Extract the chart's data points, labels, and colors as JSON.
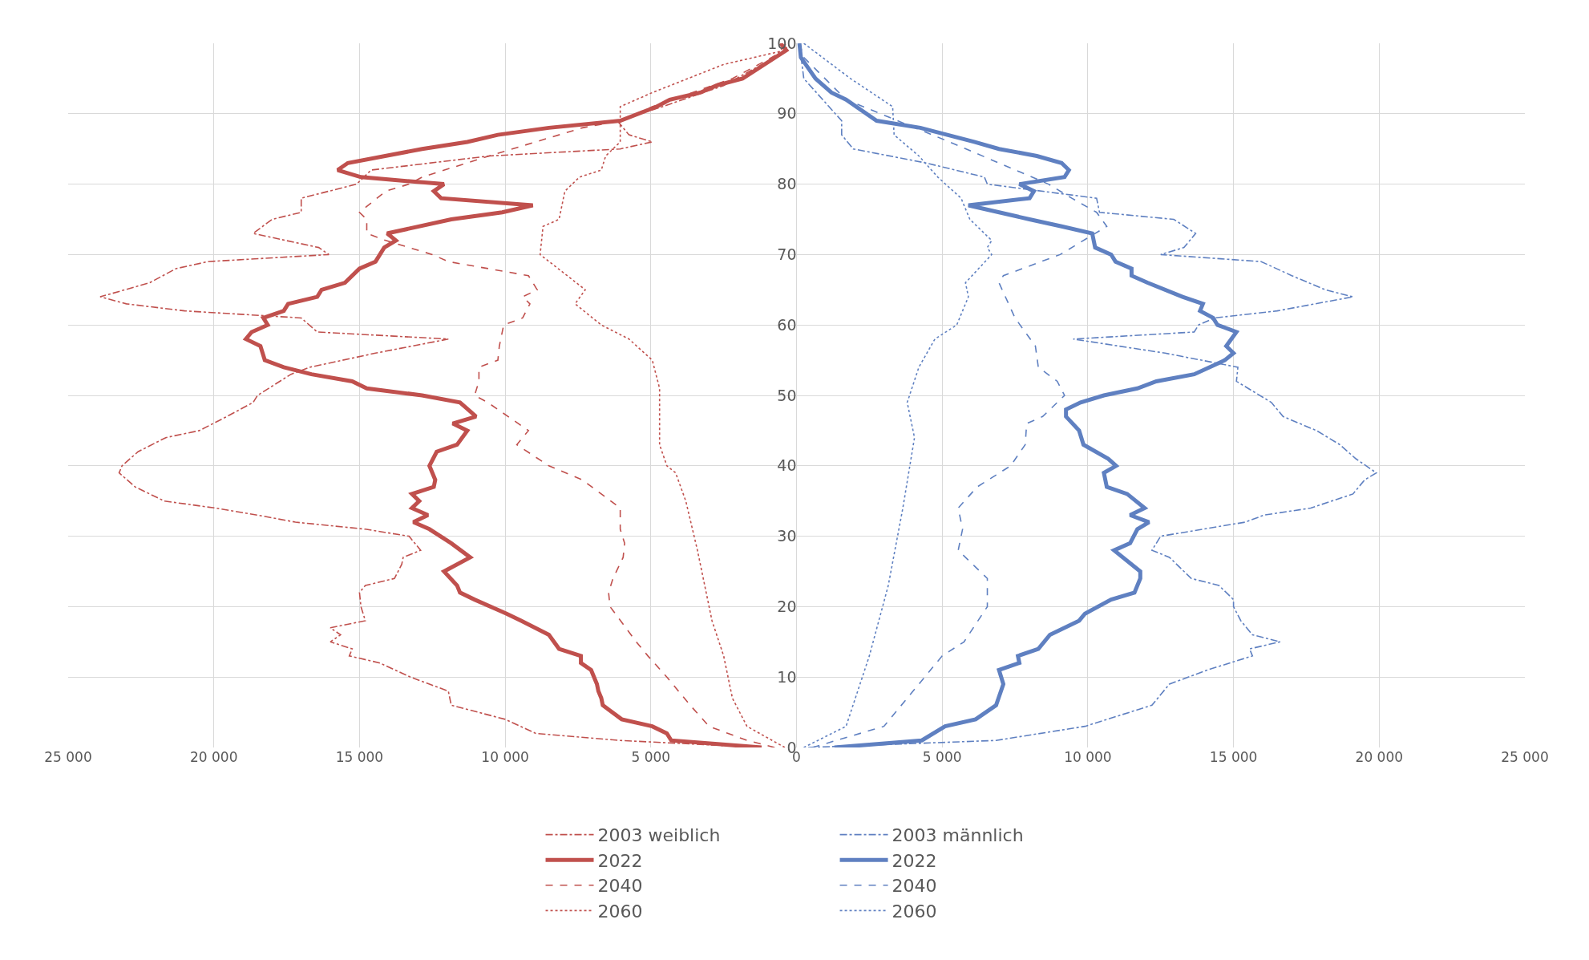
{
  "chart_data": {
    "type": "line",
    "orientation": "horizontal",
    "grid": true,
    "legend": "bottom",
    "xlim": [
      -25000,
      25000
    ],
    "xticks": [
      {
        "value": -25000,
        "label": "25 000"
      },
      {
        "value": -20000,
        "label": "20 000"
      },
      {
        "value": -15000,
        "label": "15 000"
      },
      {
        "value": -10000,
        "label": "10 000"
      },
      {
        "value": -5000,
        "label": "5 000"
      },
      0,
      {
        "value": 5000,
        "label": "5 000"
      },
      {
        "value": 10000,
        "label": "10 000"
      },
      {
        "value": 15000,
        "label": "15 000"
      },
      {
        "value": 20000,
        "label": "20 000"
      },
      {
        "value": 25000,
        "label": "25 000"
      }
    ],
    "ylim": [
      0,
      100
    ],
    "yticks": [
      0,
      10,
      20,
      30,
      40,
      50,
      60,
      70,
      80,
      90,
      100
    ],
    "series": [
      {
        "name": "2003 weiblich",
        "color": "#c0504d",
        "line_style": "dashdot",
        "x": [
          0,
          1,
          2,
          4,
          6,
          8,
          10,
          12,
          13,
          14,
          15,
          16,
          17,
          18,
          20,
          22,
          23,
          24,
          26,
          27,
          28,
          30,
          31,
          32,
          33,
          34,
          35,
          37,
          39,
          40,
          42,
          44,
          45,
          47,
          49,
          50,
          53,
          54,
          56,
          58,
          59,
          61,
          62,
          63,
          64,
          66,
          68,
          69,
          70,
          71,
          73,
          75,
          76,
          78,
          80,
          82,
          84,
          85,
          86,
          87,
          89,
          91,
          94,
          98,
          100
        ],
        "values": [
          -1200,
          -6050,
          -8950,
          -10000,
          -11850,
          -11950,
          -13250,
          -14300,
          -15350,
          -15250,
          -16000,
          -15650,
          -16000,
          -14800,
          -14950,
          -15000,
          -14800,
          -13800,
          -13550,
          -13500,
          -12900,
          -13300,
          -14800,
          -17200,
          -18500,
          -19950,
          -21700,
          -22700,
          -23250,
          -23150,
          -22600,
          -21650,
          -20500,
          -19550,
          -18650,
          -18500,
          -17350,
          -16700,
          -14450,
          -11950,
          -16450,
          -17000,
          -21000,
          -23000,
          -23900,
          -22200,
          -21300,
          -20200,
          -16050,
          -16400,
          -18650,
          -18000,
          -17000,
          -17000,
          -15100,
          -14600,
          -10550,
          -6050,
          -4950,
          -5750,
          -6150,
          -4600,
          -2500,
          -750,
          -350
        ]
      },
      {
        "name": "2003 männlich",
        "color": "#5f80c1",
        "line_style": "dashdot",
        "x": [
          0,
          1,
          3,
          6,
          9,
          11,
          13,
          14,
          15,
          16,
          18,
          20,
          21,
          23,
          24,
          27,
          28,
          30,
          32,
          33,
          34,
          36,
          38,
          39,
          41,
          43,
          45,
          47,
          49,
          52,
          54,
          56,
          58,
          59,
          60,
          61,
          62,
          64,
          65,
          67,
          69,
          70,
          71,
          73,
          75,
          76,
          78,
          80,
          81,
          83,
          85,
          87,
          89,
          95,
          100
        ],
        "values": [
          400,
          6850,
          9900,
          12200,
          12800,
          14100,
          15650,
          15550,
          16600,
          15650,
          15250,
          15000,
          15000,
          14500,
          13550,
          12800,
          12200,
          12500,
          15400,
          16050,
          17650,
          19100,
          19500,
          19900,
          19200,
          18650,
          17850,
          16700,
          16300,
          15100,
          15150,
          12650,
          9500,
          13650,
          13800,
          14350,
          16500,
          19100,
          18150,
          17000,
          15950,
          12500,
          13300,
          13700,
          12950,
          10400,
          10300,
          6550,
          6450,
          4450,
          1950,
          1550,
          1550,
          250,
          100
        ]
      },
      {
        "name": "2022",
        "color": "#c0504d",
        "line_style": "solid",
        "x": [
          0,
          1,
          2,
          3,
          4,
          6,
          7,
          8,
          9,
          11,
          12,
          13,
          14,
          16,
          18,
          19,
          21,
          22,
          23,
          25,
          27,
          29,
          31,
          32,
          33,
          34,
          35,
          36,
          37,
          38,
          40,
          42,
          43,
          45,
          46,
          47,
          49,
          50,
          51,
          52,
          53,
          54,
          55,
          57,
          58,
          59,
          60,
          61,
          62,
          63,
          64,
          65,
          66,
          68,
          69,
          71,
          72,
          73,
          75,
          76,
          77,
          78,
          79,
          80,
          81,
          82,
          83,
          85,
          86,
          87,
          88,
          89,
          91,
          92,
          93,
          94,
          95,
          99,
          100
        ],
        "values": [
          -1200,
          -4300,
          -4450,
          -4950,
          -6000,
          -6650,
          -6700,
          -6800,
          -6850,
          -7050,
          -7400,
          -7400,
          -8150,
          -8500,
          -9450,
          -9950,
          -11050,
          -11550,
          -11650,
          -12100,
          -11200,
          -11850,
          -12600,
          -13150,
          -12650,
          -13200,
          -12950,
          -13200,
          -12450,
          -12400,
          -12600,
          -12350,
          -11650,
          -11300,
          -11800,
          -11000,
          -11550,
          -12850,
          -14750,
          -15250,
          -16650,
          -17600,
          -18250,
          -18400,
          -18900,
          -18700,
          -18150,
          -18300,
          -17600,
          -17450,
          -16450,
          -16300,
          -15500,
          -15000,
          -14450,
          -14150,
          -13750,
          -14050,
          -11850,
          -10100,
          -9050,
          -12200,
          -12450,
          -12100,
          -14950,
          -15750,
          -15400,
          -12850,
          -11300,
          -10250,
          -8500,
          -6050,
          -4800,
          -4350,
          -3300,
          -2750,
          -1850,
          -350,
          -550
        ]
      },
      {
        "name": "2022",
        "color": "#5f80c1",
        "line_style": "solid",
        "x": [
          0,
          1,
          3,
          4,
          6,
          9,
          11,
          12,
          13,
          14,
          16,
          18,
          19,
          21,
          22,
          24,
          25,
          28,
          29,
          31,
          32,
          33,
          34,
          36,
          37,
          39,
          40,
          41,
          43,
          45,
          47,
          48,
          49,
          50,
          51,
          52,
          53,
          55,
          56,
          57,
          59,
          60,
          61,
          62,
          63,
          64,
          66,
          67,
          68,
          69,
          70,
          71,
          73,
          74,
          75,
          77,
          78,
          79,
          80,
          81,
          82,
          83,
          84,
          85,
          86,
          88,
          89,
          92,
          93,
          95,
          98,
          100
        ],
        "values": [
          1300,
          4300,
          5100,
          6150,
          6850,
          7100,
          6950,
          7650,
          7600,
          8300,
          8700,
          9700,
          9900,
          10800,
          11600,
          11800,
          11800,
          10900,
          11450,
          11700,
          12100,
          11450,
          11950,
          11350,
          10650,
          10550,
          10970,
          10700,
          9850,
          9700,
          9250,
          9250,
          9750,
          10550,
          11700,
          12350,
          13650,
          14700,
          15000,
          14750,
          15100,
          14450,
          14300,
          13850,
          13950,
          13250,
          12050,
          11500,
          11500,
          10950,
          10800,
          10250,
          10150,
          9100,
          8000,
          5900,
          8000,
          8150,
          7650,
          9200,
          9350,
          9100,
          8250,
          6950,
          6100,
          4250,
          2750,
          1700,
          1200,
          650,
          150,
          100
        ]
      },
      {
        "name": "2040",
        "color": "#c0504d",
        "line_style": "dashed",
        "x": [
          0,
          1,
          3,
          6,
          10,
          13,
          15,
          20,
          22,
          24,
          27,
          29,
          31,
          34,
          36,
          38,
          40,
          43,
          45,
          49,
          50,
          52,
          54,
          55,
          57,
          60,
          61,
          63,
          64,
          65,
          67,
          69,
          70,
          72,
          73,
          75,
          76,
          79,
          80,
          81,
          84,
          88,
          89,
          91,
          95,
          99,
          100
        ],
        "values": [
          -750,
          -1700,
          -3000,
          -3650,
          -4450,
          -5100,
          -5500,
          -6400,
          -6450,
          -6300,
          -5950,
          -5900,
          -6050,
          -6050,
          -6700,
          -7350,
          -8500,
          -9600,
          -9200,
          -10600,
          -11050,
          -10900,
          -10900,
          -10250,
          -10200,
          -10050,
          -9400,
          -9150,
          -9400,
          -8900,
          -9200,
          -11950,
          -12500,
          -14100,
          -14750,
          -14750,
          -15000,
          -14100,
          -13300,
          -12850,
          -10550,
          -7350,
          -6050,
          -4950,
          -2200,
          -400,
          -250
        ]
      },
      {
        "name": "2040",
        "color": "#5f80c1",
        "line_style": "dashed",
        "x": [
          0,
          3,
          13,
          15,
          20,
          24,
          28,
          31,
          34,
          37,
          40,
          43,
          46,
          47,
          50,
          52,
          54,
          57,
          61,
          66,
          67,
          70,
          74,
          76,
          78,
          80,
          86,
          92,
          98,
          100
        ],
        "values": [
          550,
          3000,
          5000,
          5750,
          6550,
          6550,
          5550,
          5700,
          5550,
          6200,
          7350,
          7850,
          7900,
          8450,
          9200,
          8950,
          8300,
          8200,
          7500,
          6950,
          7100,
          9050,
          10650,
          10300,
          9450,
          8650,
          5250,
          1700,
          250,
          100
        ]
      },
      {
        "name": "2060",
        "color": "#c0504d",
        "line_style": "dotted",
        "x": [
          0,
          3,
          7,
          13,
          18,
          28,
          35,
          39,
          40,
          43,
          51,
          55,
          58,
          60,
          63,
          65,
          70,
          74,
          75,
          79,
          81,
          82,
          84,
          86,
          91,
          93,
          97,
          99
        ],
        "values": [
          -400,
          -1700,
          -2200,
          -2500,
          -2900,
          -3400,
          -3800,
          -4150,
          -4450,
          -4700,
          -4700,
          -4950,
          -5750,
          -6700,
          -7600,
          -7250,
          -8800,
          -8700,
          -8150,
          -7950,
          -7450,
          -6700,
          -6550,
          -6050,
          -6050,
          -4950,
          -2500,
          -400
        ]
      },
      {
        "name": "2060",
        "color": "#5f80c1",
        "line_style": "dotted",
        "x": [
          0,
          3,
          13,
          23,
          34,
          44,
          49,
          54,
          58,
          60,
          64,
          66,
          70,
          71,
          72,
          75,
          78,
          81,
          84,
          87,
          91,
          95,
          100
        ],
        "values": [
          250,
          1700,
          2500,
          3150,
          3650,
          4050,
          3800,
          4200,
          4750,
          5500,
          5900,
          5800,
          6700,
          6550,
          6700,
          5950,
          5650,
          4850,
          4200,
          3350,
          3300,
          1850,
          250
        ]
      }
    ]
  }
}
